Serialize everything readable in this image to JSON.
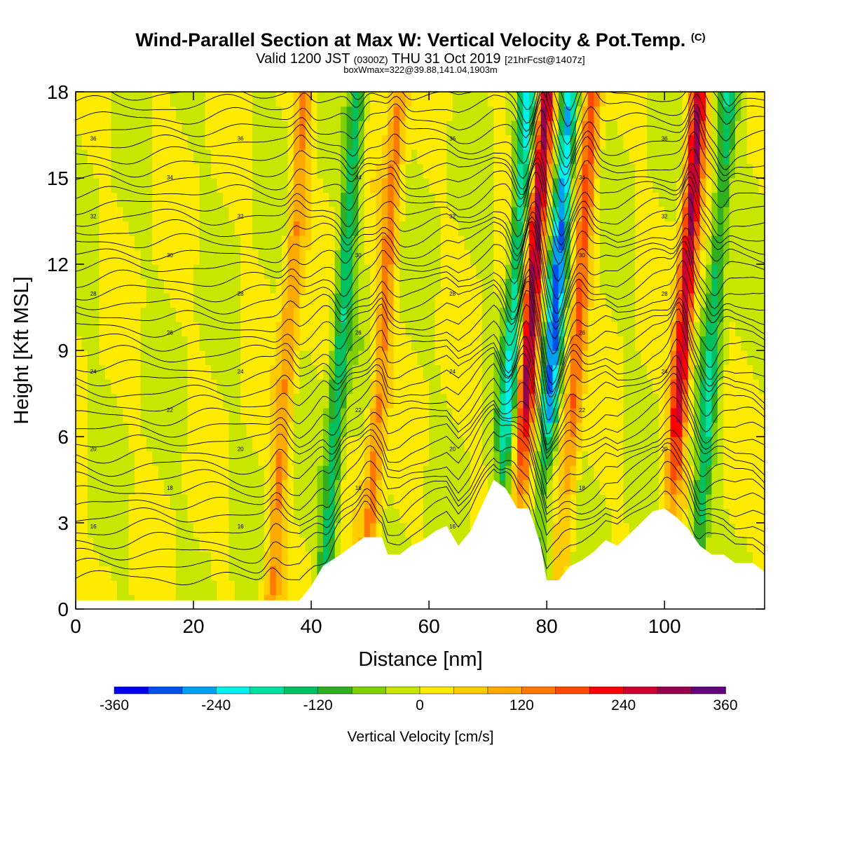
{
  "title": {
    "main": "Wind-Parallel Section at Max W: Vertical Velocity & Pot.Temp.",
    "copyright": "(C)",
    "valid_pre": "Valid 1200 JST",
    "valid_utc": "(0300Z)",
    "valid_post": "THU 31 Oct 2019",
    "forecast": "[21hrFcst@1407z]",
    "box": "boxWmax=322@39.88,141.04,1903m"
  },
  "chart_data": {
    "type": "heatmap",
    "xlabel": "Distance [nm]",
    "ylabel": "Height [Kft MSL]",
    "xlim": [
      0,
      117
    ],
    "ylim": [
      0,
      18
    ],
    "xticks": [
      0,
      20,
      40,
      60,
      80,
      100
    ],
    "yticks": [
      0,
      3,
      6,
      9,
      12,
      15,
      18
    ],
    "colorbar": {
      "label": "Vertical Velocity [cm/s]",
      "min": -360,
      "max": 360,
      "ticks": [
        -360,
        -240,
        -120,
        0,
        120,
        240,
        360
      ],
      "colors": [
        "#0000f0",
        "#0050f0",
        "#00a0f0",
        "#00f0f0",
        "#00e0a0",
        "#00c060",
        "#30b020",
        "#80d000",
        "#c8e600",
        "#ffeb00",
        "#ffcc00",
        "#ffaa00",
        "#ff7800",
        "#ff4800",
        "#ff0000",
        "#cc0030",
        "#960050",
        "#640080"
      ]
    },
    "terrain": [
      [
        0,
        0.3
      ],
      [
        38,
        0.3
      ],
      [
        40,
        0.8
      ],
      [
        42,
        1.5
      ],
      [
        45,
        1.9
      ],
      [
        47,
        2.2
      ],
      [
        49,
        2.5
      ],
      [
        52,
        2.5
      ],
      [
        53,
        1.9
      ],
      [
        55,
        1.9
      ],
      [
        57,
        2.2
      ],
      [
        59,
        2.4
      ],
      [
        61,
        2.7
      ],
      [
        63,
        2.9
      ],
      [
        65,
        2.2
      ],
      [
        67,
        2.7
      ],
      [
        69,
        3.6
      ],
      [
        71,
        4.5
      ],
      [
        73,
        4.2
      ],
      [
        75,
        3.5
      ],
      [
        77,
        3.5
      ],
      [
        79,
        2.2
      ],
      [
        80,
        1.0
      ],
      [
        82,
        1.0
      ],
      [
        84,
        1.5
      ],
      [
        86,
        1.7
      ],
      [
        88,
        2.0
      ],
      [
        90,
        2.4
      ],
      [
        92,
        2.2
      ],
      [
        94,
        2.6
      ],
      [
        96,
        3.0
      ],
      [
        98,
        3.4
      ],
      [
        100,
        3.5
      ],
      [
        102,
        3.2
      ],
      [
        104,
        2.8
      ],
      [
        106,
        2.2
      ],
      [
        108,
        1.9
      ],
      [
        110,
        1.9
      ],
      [
        112,
        1.6
      ],
      [
        115,
        1.6
      ],
      [
        117,
        1.3
      ]
    ],
    "theta_labels": [
      "36",
      "34",
      "32",
      "30",
      "28",
      "26",
      "24",
      "22",
      "20",
      "18",
      "16"
    ],
    "w_features": [
      {
        "x": 36,
        "w": 120
      },
      {
        "x": 45,
        "w": -150
      },
      {
        "x": 52,
        "w": 130
      },
      {
        "x": 74,
        "w": -200
      },
      {
        "x": 77,
        "w": 300
      },
      {
        "x": 81,
        "w": -280
      },
      {
        "x": 85,
        "w": 170
      },
      {
        "x": 103,
        "w": 280
      },
      {
        "x": 108,
        "w": -150
      }
    ]
  }
}
